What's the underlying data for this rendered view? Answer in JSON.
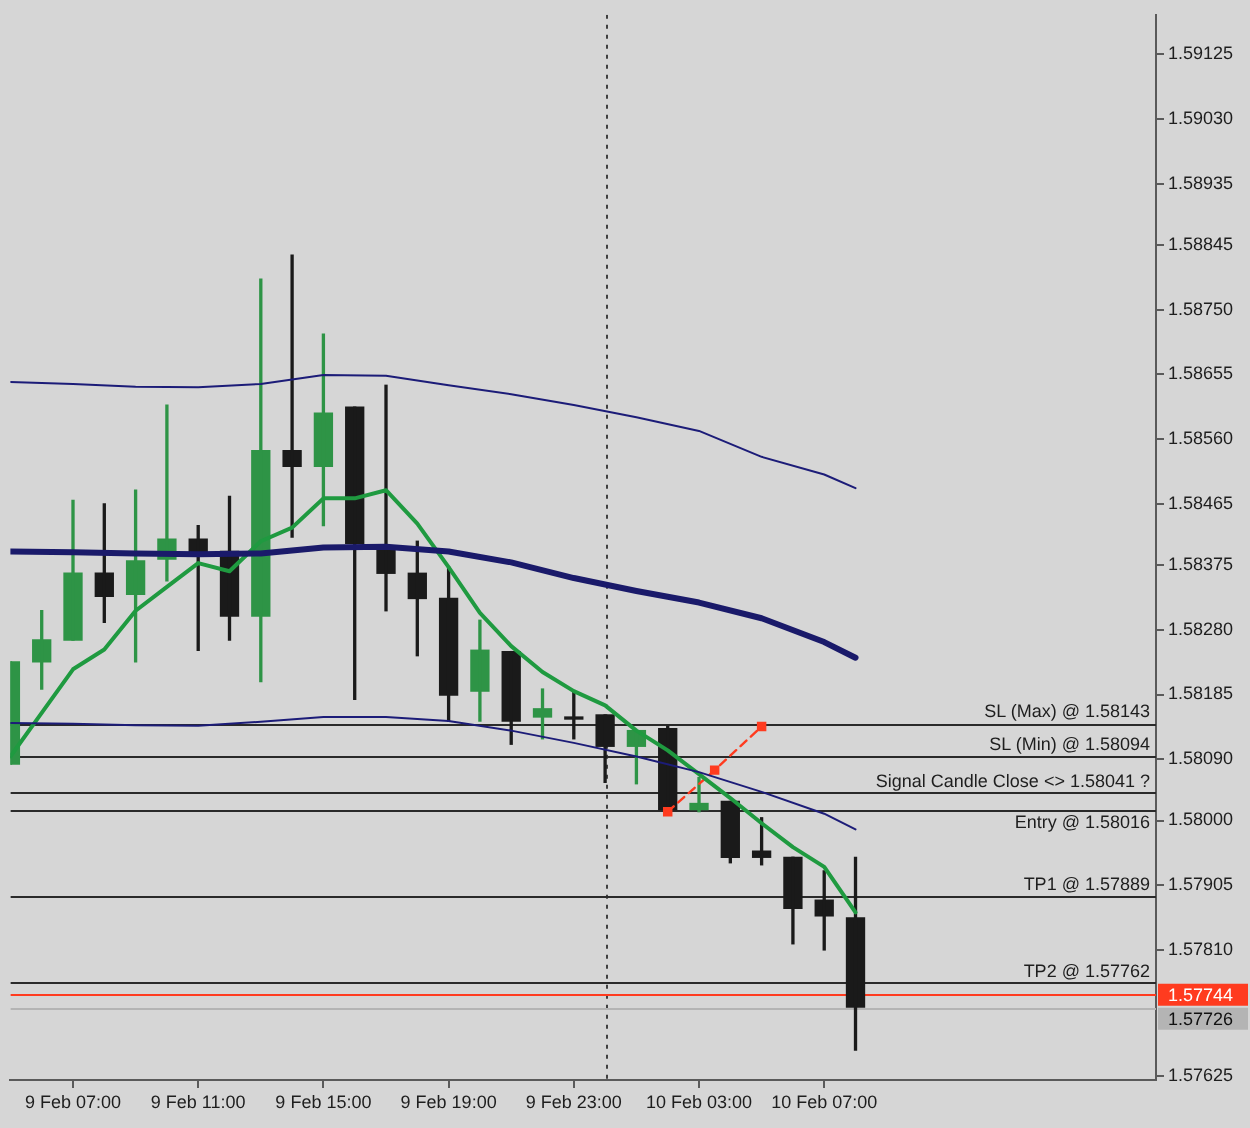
{
  "chart_data": {
    "type": "candlestick",
    "x": [
      "--02-09T05:00",
      "--02-09T06:00",
      "--02-09T07:00",
      "--02-09T08:00",
      "--02-09T09:00",
      "--02-09T10:00",
      "--02-09T11:00",
      "--02-09T12:00",
      "--02-09T13:00",
      "--02-09T14:00",
      "--02-09T15:00",
      "--02-09T16:00",
      "--02-09T17:00",
      "--02-09T18:00",
      "--02-09T19:00",
      "--02-09T20:00",
      "--02-09T21:00",
      "--02-09T22:00",
      "--02-09T23:00",
      "--02-10T00:00",
      "--02-10T01:00",
      "--02-10T02:00",
      "--02-10T03:00",
      "--02-10T04:00",
      "--02-10T05:00",
      "--02-10T06:00",
      "--02-10T07:00",
      "--02-10T08:00"
    ],
    "ohlc": [
      [
        1.58083,
        1.58233,
        1.58083,
        1.58233
      ],
      [
        1.58233,
        1.58308,
        1.58193,
        1.58265
      ],
      [
        1.58265,
        1.5847,
        1.58265,
        1.58363
      ],
      [
        1.58363,
        1.58465,
        1.58291,
        1.58329
      ],
      [
        1.58332,
        1.58485,
        1.58233,
        1.58381
      ],
      [
        1.58384,
        1.5861,
        1.58352,
        1.58413
      ],
      [
        1.58413,
        1.58433,
        1.5825,
        1.58392
      ],
      [
        1.58395,
        1.58476,
        1.58265,
        1.583
      ],
      [
        1.583,
        1.58795,
        1.58204,
        1.58543
      ],
      [
        1.58543,
        1.5883,
        1.58416,
        1.5852
      ],
      [
        1.5852,
        1.58714,
        1.58433,
        1.58598
      ],
      [
        1.58607,
        1.58607,
        1.58178,
        1.58407
      ],
      [
        1.58398,
        1.58639,
        1.58308,
        1.58363
      ],
      [
        1.58363,
        1.5841,
        1.58242,
        1.58326
      ],
      [
        1.58326,
        1.58372,
        1.58146,
        1.58184
      ],
      [
        1.5819,
        1.58294,
        1.58146,
        1.5825
      ],
      [
        1.58248,
        1.58248,
        1.58112,
        1.58146
      ],
      [
        1.58152,
        1.58193,
        1.5812,
        1.58164
      ],
      [
        1.58149,
        1.5819,
        1.5812,
        1.58149
      ],
      [
        1.58155,
        1.58155,
        1.58056,
        1.58109
      ],
      [
        1.58109,
        1.58132,
        1.58054,
        1.58132
      ],
      [
        1.58135,
        1.58138,
        1.58016,
        1.58016
      ],
      [
        1.58016,
        1.58063,
        1.58013,
        1.58025
      ],
      [
        1.58028,
        1.58028,
        1.57938,
        1.57946
      ],
      [
        1.57955,
        1.58004,
        1.57935,
        1.57946
      ],
      [
        1.57946,
        1.57946,
        1.57819,
        1.57871
      ],
      [
        1.57883,
        1.57926,
        1.5781,
        1.5786
      ],
      [
        1.57857,
        1.57946,
        1.57663,
        1.57726
      ]
    ],
    "colors": [
      "#2e9446",
      "#2e9446",
      "#2e9446",
      "#1a1a1a",
      "#2e9446",
      "#2e9446",
      "#1a1a1a",
      "#1a1a1a",
      "#2e9446",
      "#1a1a1a",
      "#2e9446",
      "#1a1a1a",
      "#1a1a1a",
      "#1a1a1a",
      "#1a1a1a",
      "#2e9446",
      "#1a1a1a",
      "#2e9446",
      "#1a1a1a",
      "#1a1a1a",
      "#2e9446",
      "#1a1a1a",
      "#2e9446",
      "#1a1a1a",
      "#1a1a1a",
      "#1a1a1a",
      "#1a1a1a",
      "#1a1a1a"
    ],
    "series": [
      {
        "type": "line",
        "color": "#1c1c78",
        "x": [
          "--02-09T05:00",
          "--02-09T07:00",
          "--02-09T09:00",
          "--02-09T11:00",
          "--02-09T13:00",
          "--02-09T15:00",
          "--02-09T17:00",
          "--02-09T19:00",
          "--02-09T21:00",
          "--02-09T23:00",
          "--02-10T01:00",
          "--02-10T03:00",
          "--02-10T05:00",
          "--02-10T07:00",
          "--02-10T08:00"
        ],
        "values": [
          1.58644,
          1.58641,
          1.58637,
          1.58636,
          1.58641,
          1.58654,
          1.58653,
          1.58639,
          1.58626,
          1.5861,
          1.58592,
          1.58572,
          1.58534,
          1.58508,
          1.58488
        ]
      },
      {
        "type": "line",
        "color": "#1a1a6a",
        "x": [
          "--02-09T05:00",
          "--02-09T07:00",
          "--02-09T09:00",
          "--02-09T11:00",
          "--02-09T13:00",
          "--02-09T15:00",
          "--02-09T17:00",
          "--02-09T19:00",
          "--02-09T21:00",
          "--02-09T23:00",
          "--02-10T01:00",
          "--02-10T03:00",
          "--02-10T05:00",
          "--02-10T07:00",
          "--02-10T08:00"
        ],
        "values": [
          1.58395,
          1.58394,
          1.58392,
          1.58391,
          1.58392,
          1.58401,
          1.58402,
          1.58395,
          1.58379,
          1.58356,
          1.58337,
          1.5832,
          1.58297,
          1.58262,
          1.58239
        ]
      },
      {
        "type": "line",
        "color": "#1c1c78",
        "x": [
          "--02-09T05:00",
          "--02-09T07:00",
          "--02-09T09:00",
          "--02-09T11:00",
          "--02-09T13:00",
          "--02-09T15:00",
          "--02-09T17:00",
          "--02-09T19:00",
          "--02-09T21:00",
          "--02-09T23:00",
          "--02-10T01:00",
          "--02-10T03:00",
          "--02-10T05:00",
          "--02-10T07:00",
          "--02-10T08:00"
        ],
        "values": [
          1.58143,
          1.58142,
          1.5814,
          1.58139,
          1.58145,
          1.58152,
          1.58152,
          1.58146,
          1.58132,
          1.58114,
          1.58094,
          1.58071,
          1.58042,
          1.5801,
          1.57987
        ]
      },
      {
        "type": "line",
        "color": "#1f9a40",
        "values": [
          1.58094,
          1.58158,
          1.58222,
          1.58251,
          1.58308,
          1.58343,
          1.58378,
          1.58366,
          1.5841,
          1.5843,
          1.58473,
          1.58473,
          1.58485,
          1.58436,
          1.58372,
          1.58305,
          1.58256,
          1.58218,
          1.5819,
          1.58169,
          1.58132,
          1.58103,
          1.58068,
          1.58033,
          1.57996,
          1.57961,
          1.57932,
          1.57865
        ]
      },
      {
        "type": "line",
        "color": "#ff3b1f",
        "line_style": "dashed",
        "marker": "square",
        "x": [
          "--02-10T02:00",
          "--02-10T03:30",
          "--02-10T05:00"
        ],
        "values": [
          1.58013,
          1.58074,
          1.58138
        ]
      }
    ],
    "xlim": [
      "--02-09T05:00",
      "--02-10T17:36"
    ],
    "xticks": [
      {
        "value": "--02-09T07:00",
        "label": "9 Feb 07:00"
      },
      {
        "value": "--02-09T11:00",
        "label": "9 Feb 11:00"
      },
      {
        "value": "--02-09T15:00",
        "label": "9 Feb 15:00"
      },
      {
        "value": "--02-09T19:00",
        "label": "9 Feb 19:00"
      },
      {
        "value": "--02-09T23:00",
        "label": "9 Feb 23:00"
      },
      {
        "value": "--02-10T03:00",
        "label": "10 Feb 03:00"
      },
      {
        "value": "--02-10T07:00",
        "label": "10 Feb 07:00"
      }
    ],
    "ylim": [
      1.57619,
      1.59183
    ],
    "yticks": [
      1.59125,
      {
        "value": 1.5903,
        "label": "1.59030"
      },
      1.58935,
      1.58845,
      {
        "value": 1.5875,
        "label": "1.58750"
      },
      1.58655,
      {
        "value": 1.5856,
        "label": "1.58560"
      },
      1.58465,
      1.58375,
      {
        "value": 1.5828,
        "label": "1.58280"
      },
      1.58185,
      {
        "value": 1.5809,
        "label": "1.58090"
      },
      {
        "value": 1.58,
        "label": "1.58000"
      },
      1.57905,
      {
        "value": 1.5781,
        "label": "1.57810"
      },
      1.57625
    ],
    "ref_lines": [
      {
        "axis": "x",
        "value": "--02-10T00:00",
        "line_style": "dotted"
      },
      {
        "axis": "y",
        "value": 1.58143,
        "label": "SL (Max) @ 1.58143"
      },
      {
        "axis": "y",
        "value": 1.58094,
        "label": "SL (Min) @ 1.58094"
      },
      {
        "axis": "y",
        "value": 1.58041,
        "label": "Signal Candle Close <> 1.58041 ?"
      },
      {
        "axis": "y",
        "value": 1.58016,
        "label": "Entry @ 1.58016"
      },
      {
        "axis": "y",
        "value": 1.57889,
        "label": "TP1 @ 1.57889"
      },
      {
        "axis": "y",
        "value": 1.57762,
        "label": "TP2 @ 1.57762"
      },
      {
        "axis": "y",
        "value": 1.57744,
        "label": "1.57744",
        "color": "#ff3b1f"
      },
      {
        "axis": "y",
        "value": 1.57726,
        "label": "1.57726",
        "color": "#b4b4b4"
      }
    ]
  }
}
